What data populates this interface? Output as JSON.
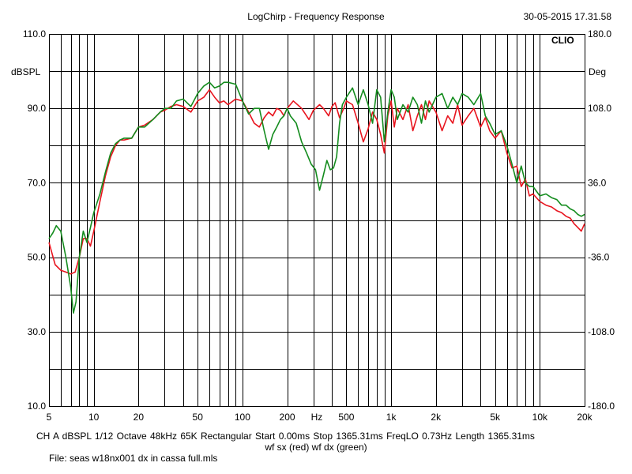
{
  "header": {
    "title": "LogChirp - Frequency Response",
    "timestamp": "30-05-2015 17.31.58",
    "logo": "CLIO"
  },
  "footer": {
    "params": "CH A    dBSPL   1/12 Octave   48kHz   65K   Rectangular   Start 0.00ms    Stop 1365.31ms     FreqLO 0.73Hz    Length 1365.31ms",
    "legend": "wf sx (red) wf dx (green)",
    "file": "File: seas w18nx001 dx in cassa full.mls"
  },
  "colors": {
    "background": "#ffffff",
    "grid": "#000000",
    "red_trace": "#e8141e",
    "green_trace": "#148c1e"
  },
  "chart_data": {
    "type": "line",
    "title": "LogChirp - Frequency Response",
    "xscale": "log",
    "xlim": [
      5,
      20000
    ],
    "ylim": [
      10,
      110
    ],
    "y2lim": [
      -180,
      180
    ],
    "ylabel": "dBSPL",
    "y2label": "Deg",
    "xunit_label": "Hz",
    "grid": true,
    "x_ticks": [
      {
        "value": 5,
        "label": "5"
      },
      {
        "value": 10,
        "label": "10"
      },
      {
        "value": 20,
        "label": "20"
      },
      {
        "value": 50,
        "label": "50"
      },
      {
        "value": 100,
        "label": "100"
      },
      {
        "value": 200,
        "label": "200"
      },
      {
        "value": 500,
        "label": "500"
      },
      {
        "value": 1000,
        "label": "1k"
      },
      {
        "value": 2000,
        "label": "2k"
      },
      {
        "value": 5000,
        "label": "5k"
      },
      {
        "value": 10000,
        "label": "10k"
      },
      {
        "value": 20000,
        "label": "20k"
      }
    ],
    "y_ticks": [
      {
        "value": 110,
        "label": "110.0"
      },
      {
        "value": 90,
        "label": "90.0"
      },
      {
        "value": 70,
        "label": "70.0"
      },
      {
        "value": 50,
        "label": "50.0"
      },
      {
        "value": 30,
        "label": "30.0"
      },
      {
        "value": 10,
        "label": "10.0"
      }
    ],
    "y2_ticks": [
      {
        "value": 180,
        "label": "180.0"
      },
      {
        "value": 108,
        "label": "108.0"
      },
      {
        "value": 36,
        "label": "36.0"
      },
      {
        "value": -36,
        "label": "-36.0"
      },
      {
        "value": -108,
        "label": "-108.0"
      },
      {
        "value": -180,
        "label": "-180.0"
      }
    ],
    "series": [
      {
        "name": "wf sx",
        "color": "#e8141e",
        "x": [
          5,
          5.5,
          6,
          6.5,
          7,
          7.5,
          8,
          8.5,
          9,
          9.5,
          10,
          11,
          12,
          13,
          14,
          15,
          16,
          18,
          20,
          22,
          25,
          28,
          30,
          33,
          36,
          40,
          45,
          50,
          55,
          60,
          65,
          70,
          75,
          80,
          90,
          100,
          110,
          120,
          130,
          140,
          150,
          160,
          170,
          180,
          190,
          200,
          220,
          250,
          280,
          300,
          330,
          350,
          380,
          400,
          420,
          450,
          480,
          500,
          550,
          600,
          650,
          700,
          750,
          800,
          850,
          900,
          950,
          1000,
          1050,
          1100,
          1200,
          1300,
          1400,
          1500,
          1600,
          1700,
          1800,
          2000,
          2200,
          2400,
          2600,
          2800,
          3000,
          3300,
          3600,
          4000,
          4300,
          4600,
          5000,
          5500,
          6000,
          6500,
          7000,
          7500,
          8000,
          8500,
          9000,
          10000,
          11000,
          12000,
          13000,
          14000,
          15000,
          16000,
          17000,
          18000,
          19000,
          20000
        ],
        "y": [
          54,
          48,
          46.5,
          46,
          45.5,
          46,
          50,
          55,
          55,
          53,
          57,
          65,
          72,
          77,
          80,
          81.5,
          81.5,
          82,
          85,
          85.5,
          87,
          89,
          89.5,
          90.5,
          91,
          90.5,
          89,
          92,
          93,
          95,
          93,
          91.5,
          92,
          91,
          92.5,
          92,
          89,
          86,
          85,
          87.5,
          89,
          88,
          90,
          89.5,
          88,
          90,
          92,
          90,
          87,
          89.5,
          91,
          90,
          88,
          90.5,
          91.5,
          87.5,
          90,
          92,
          91,
          86,
          81,
          84.5,
          89,
          87,
          83,
          78,
          88,
          92,
          85,
          90,
          87,
          91,
          84,
          88,
          91,
          87,
          92,
          89,
          84,
          88,
          86,
          91,
          85.5,
          88,
          90,
          85,
          87.5,
          84,
          82,
          84,
          78,
          74,
          74.5,
          69,
          71,
          66.5,
          67,
          65,
          64,
          63.5,
          62.5,
          62,
          61,
          60.5,
          59,
          58,
          57,
          59
        ]
      },
      {
        "name": "wf dx",
        "color": "#148c1e",
        "x": [
          5,
          5.3,
          5.6,
          6,
          6.5,
          7,
          7.3,
          7.6,
          8,
          8.5,
          9,
          9.5,
          10,
          11,
          12,
          13,
          14,
          15,
          16,
          18,
          20,
          22,
          25,
          28,
          30,
          33,
          36,
          40,
          45,
          50,
          55,
          60,
          65,
          70,
          75,
          80,
          90,
          100,
          110,
          120,
          130,
          140,
          150,
          160,
          170,
          180,
          190,
          200,
          210,
          230,
          250,
          270,
          290,
          310,
          330,
          350,
          370,
          390,
          410,
          430,
          450,
          470,
          500,
          550,
          600,
          650,
          700,
          750,
          800,
          850,
          900,
          950,
          1000,
          1050,
          1100,
          1200,
          1300,
          1400,
          1500,
          1600,
          1700,
          1800,
          2000,
          2200,
          2400,
          2600,
          2800,
          3000,
          3300,
          3600,
          4000,
          4300,
          4600,
          5000,
          5500,
          6000,
          6500,
          7000,
          7500,
          8000,
          8500,
          9000,
          10000,
          11000,
          12000,
          13000,
          14000,
          15000,
          16000,
          17000,
          18000,
          19000,
          20000
        ],
        "y": [
          55,
          56.5,
          58.5,
          57,
          50,
          42,
          35,
          38,
          50,
          57,
          54,
          58,
          62,
          67,
          73,
          78,
          80.5,
          81.5,
          82,
          82,
          85,
          85,
          87,
          89,
          90,
          90,
          92,
          92.5,
          90.5,
          94,
          96,
          97,
          95.5,
          96,
          97,
          97,
          96.5,
          92,
          88.5,
          90,
          90,
          84,
          79,
          83,
          85,
          87,
          88,
          90,
          88,
          86,
          81,
          78,
          75,
          73.5,
          68,
          72,
          76,
          73.5,
          74,
          77,
          86,
          91,
          93,
          95.5,
          91,
          95,
          91,
          86,
          95,
          93,
          81,
          89,
          95,
          93,
          87,
          91,
          89,
          93,
          91,
          86,
          92,
          89,
          93,
          94,
          90,
          93,
          91,
          94,
          93,
          91,
          94,
          88,
          86,
          83,
          84,
          80,
          75,
          70,
          74.5,
          70,
          69,
          69,
          66.5,
          67,
          66,
          65.5,
          64,
          64,
          63,
          62.5,
          61.5,
          61,
          61.5
        ]
      }
    ]
  }
}
